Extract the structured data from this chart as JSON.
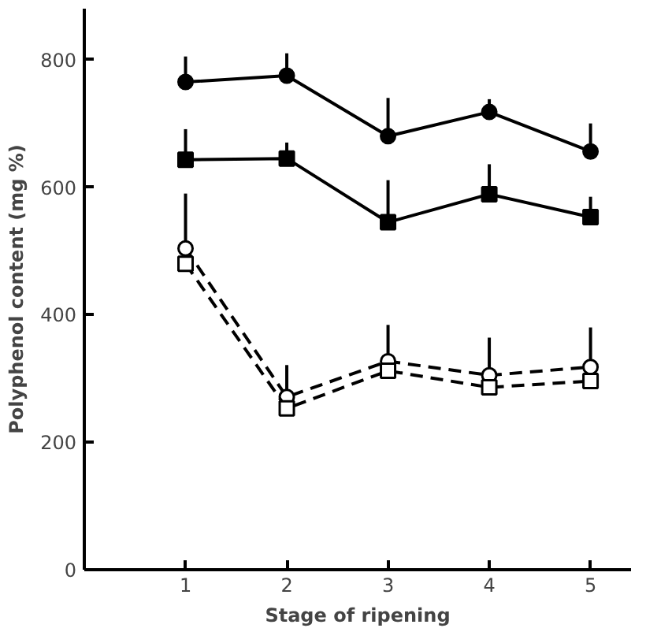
{
  "chart_data": {
    "type": "line",
    "xlabel": "Stage of ripening",
    "ylabel": "Polyphenol content (mg %)",
    "x": [
      1,
      2,
      3,
      4,
      5
    ],
    "xlim": [
      0,
      5.4
    ],
    "xticks": [
      1,
      2,
      3,
      4,
      5
    ],
    "ylim": [
      0,
      880
    ],
    "yticks": [
      0,
      200,
      400,
      600,
      800
    ],
    "grid": false,
    "series": [
      {
        "color": "#000000",
        "marker": "circle",
        "line_style": "solid",
        "values": [
          765,
          775,
          680,
          718,
          656
        ],
        "errors": [
          [
            765,
            805
          ],
          [
            775,
            810
          ],
          [
            680,
            740
          ],
          [
            718,
            738
          ],
          [
            656,
            700
          ]
        ]
      },
      {
        "color": "#000000",
        "marker": "square",
        "line_style": "solid",
        "values": [
          643,
          645,
          545,
          589,
          553
        ],
        "errors": [
          [
            643,
            691
          ],
          [
            645,
            670
          ],
          [
            545,
            611
          ],
          [
            589,
            636
          ],
          [
            553,
            585
          ]
        ]
      },
      {
        "color": "#000000",
        "marker": "circle",
        "line_style": "dashed",
        "values": [
          504,
          271,
          327,
          305,
          318
        ],
        "errors": [
          [
            504,
            590
          ],
          [
            271,
            321
          ],
          [
            327,
            384
          ],
          [
            305,
            364
          ],
          [
            318,
            380
          ]
        ]
      },
      {
        "color": "#000000",
        "marker": "square",
        "line_style": "dashed",
        "values": [
          480,
          253,
          312,
          286,
          296
        ]
      }
    ]
  }
}
